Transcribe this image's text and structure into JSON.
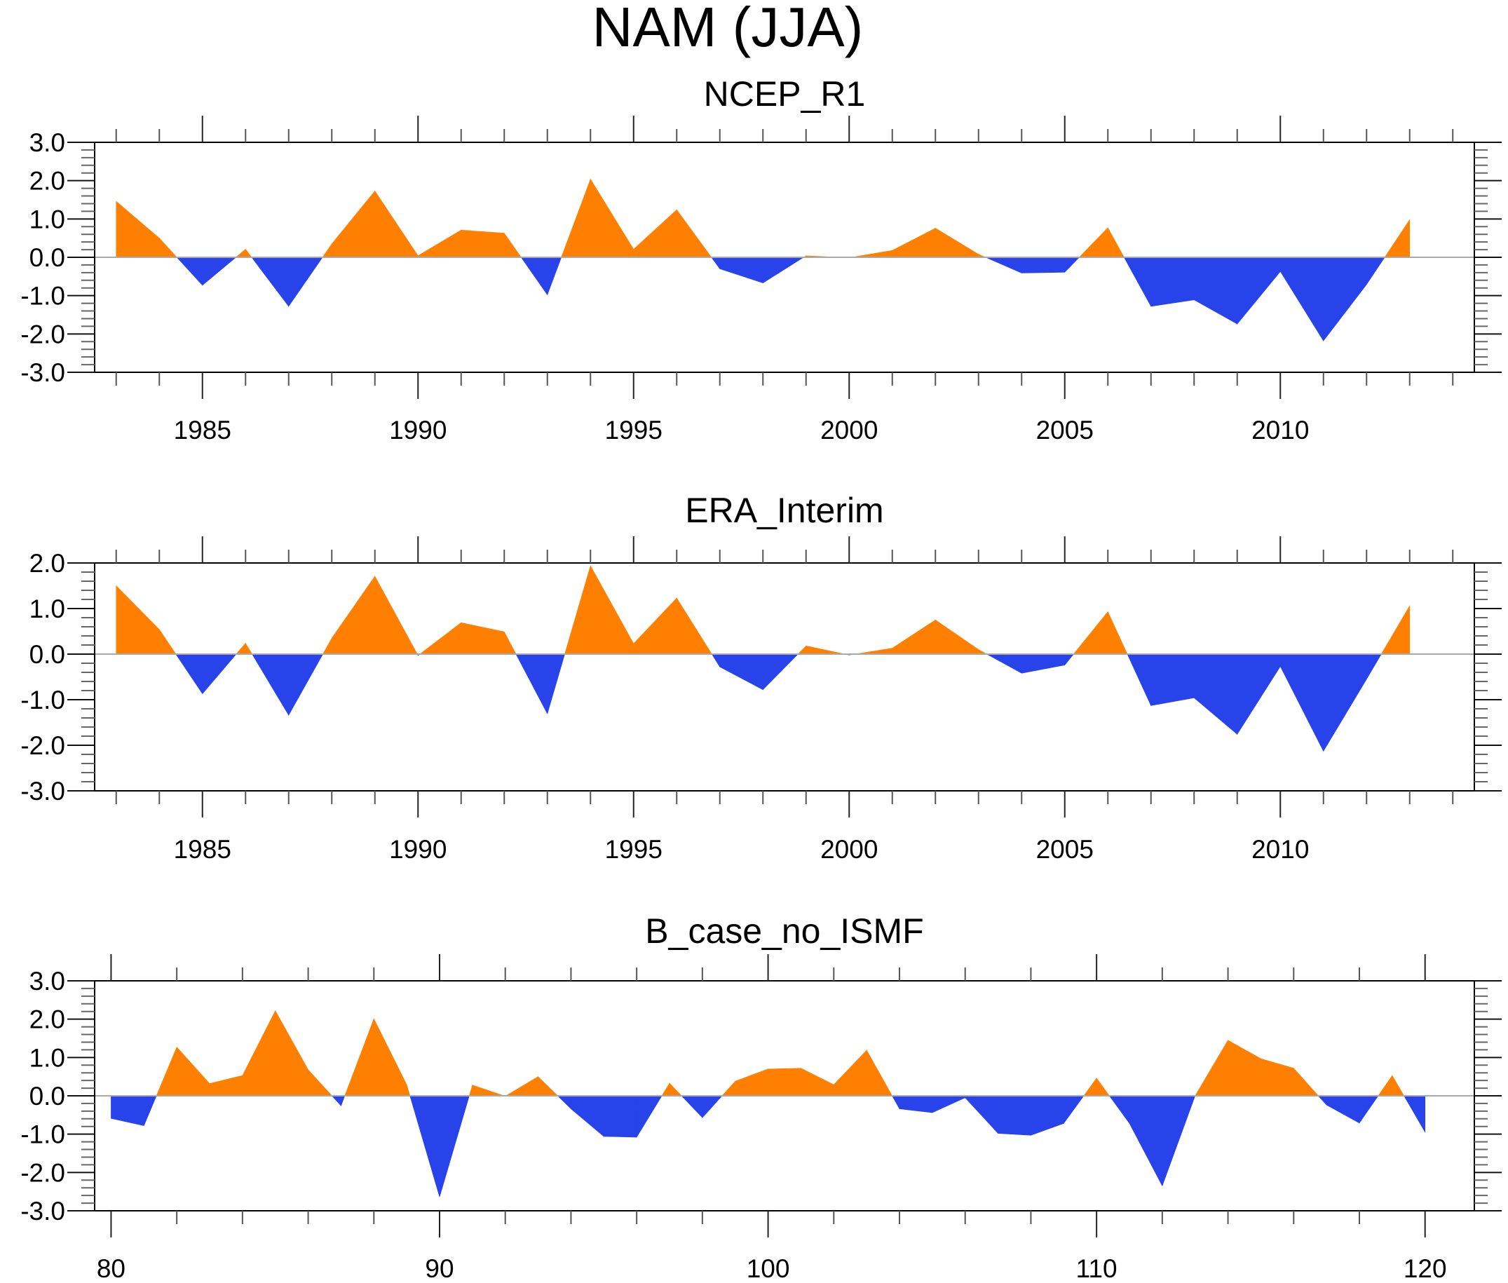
{
  "figure_title": "NAM (JJA)",
  "colors": {
    "positive": "#ff8000",
    "negative": "#2843ea",
    "zero_line": "#aaaaaa",
    "axes": "#000000"
  },
  "chart_data": [
    {
      "type": "area",
      "title": "NCEP_R1",
      "xlabel": "",
      "ylabel": "",
      "xlim": [
        1982.5,
        2014.5
      ],
      "ylim": [
        -3,
        3
      ],
      "x_major_ticks": [
        1985,
        1990,
        1995,
        2000,
        2005,
        2010
      ],
      "x_tick_labels": [
        "1985",
        "1990",
        "1995",
        "2000",
        "2005",
        "2010"
      ],
      "x_minor_step": 1,
      "y_major_ticks": [
        3,
        2,
        1,
        0,
        -1,
        -2,
        -3
      ],
      "y_tick_labels": [
        "3.0",
        "2.0",
        "1.0",
        "0.0",
        "-1.0",
        "-2.0",
        "-3.0"
      ],
      "y_minor_step": 0.2,
      "grid": false,
      "reference_line": 0,
      "x": [
        1983,
        1984,
        1985,
        1986,
        1987,
        1988,
        1989,
        1990,
        1991,
        1992,
        1993,
        1994,
        1995,
        1996,
        1997,
        1998,
        1999,
        2000,
        2001,
        2002,
        2003,
        2004,
        2005,
        2006,
        2007,
        2008,
        2009,
        2010,
        2011,
        2012,
        2013
      ],
      "values": [
        1.46,
        0.5,
        -0.73,
        0.21,
        -1.28,
        0.35,
        1.73,
        0.04,
        0.71,
        0.63,
        -0.98,
        2.04,
        0.21,
        1.24,
        -0.3,
        -0.67,
        0.04,
        -0.01,
        0.18,
        0.76,
        0.08,
        -0.41,
        -0.39,
        0.77,
        -1.28,
        -1.11,
        -1.74,
        -0.37,
        -2.18,
        -0.71,
        0.98
      ]
    },
    {
      "type": "area",
      "title": "ERA_Interim",
      "xlabel": "",
      "ylabel": "",
      "xlim": [
        1982.5,
        2014.5
      ],
      "ylim": [
        -3,
        2
      ],
      "x_major_ticks": [
        1985,
        1990,
        1995,
        2000,
        2005,
        2010
      ],
      "x_tick_labels": [
        "1985",
        "1990",
        "1995",
        "2000",
        "2005",
        "2010"
      ],
      "x_minor_step": 1,
      "y_major_ticks": [
        2,
        1,
        0,
        -1,
        -2,
        -3
      ],
      "y_tick_labels": [
        "2.0",
        "1.0",
        "0.0",
        "-1.0",
        "-2.0",
        "-3.0"
      ],
      "y_minor_step": 0.2,
      "grid": false,
      "reference_line": 0,
      "x": [
        1983,
        1984,
        1985,
        1986,
        1987,
        1988,
        1989,
        1990,
        1991,
        1992,
        1993,
        1994,
        1995,
        1996,
        1997,
        1998,
        1999,
        2000,
        2001,
        2002,
        2003,
        2004,
        2005,
        2006,
        2007,
        2008,
        2009,
        2010,
        2011,
        2012,
        2013
      ],
      "values": [
        1.5,
        0.54,
        -0.87,
        0.24,
        -1.34,
        0.35,
        1.71,
        -0.03,
        0.69,
        0.49,
        -1.31,
        1.94,
        0.23,
        1.23,
        -0.28,
        -0.78,
        0.18,
        -0.02,
        0.13,
        0.75,
        0.1,
        -0.42,
        -0.24,
        0.93,
        -1.13,
        -0.96,
        -1.76,
        -0.27,
        -2.13,
        -0.55,
        1.06
      ]
    },
    {
      "type": "area",
      "title": "B_case_no_ISMF",
      "xlabel": "",
      "ylabel": "",
      "xlim": [
        79.5,
        121.5
      ],
      "ylim": [
        -3,
        3
      ],
      "x_major_ticks": [
        80,
        90,
        100,
        110,
        120
      ],
      "x_tick_labels": [
        "80",
        "90",
        "100",
        "110",
        "120"
      ],
      "x_minor_step": 2,
      "y_major_ticks": [
        3,
        2,
        1,
        0,
        -1,
        -2,
        -3
      ],
      "y_tick_labels": [
        "3.0",
        "2.0",
        "1.0",
        "0.0",
        "-1.0",
        "-2.0",
        "-3.0"
      ],
      "y_minor_step": 0.2,
      "grid": false,
      "reference_line": 0,
      "x": [
        80,
        81,
        82,
        83,
        84,
        85,
        86,
        87,
        88,
        89,
        90,
        91,
        92,
        93,
        94,
        95,
        96,
        97,
        98,
        99,
        100,
        101,
        102,
        103,
        104,
        105,
        106,
        107,
        108,
        109,
        110,
        111,
        112,
        113,
        114,
        115,
        116,
        117,
        118,
        119,
        120
      ],
      "values": [
        -0.59,
        -0.78,
        1.27,
        0.32,
        0.53,
        2.22,
        0.68,
        -0.26,
        2.01,
        0.29,
        -2.64,
        0.28,
        -0.01,
        0.5,
        -0.34,
        -1.06,
        -1.08,
        0.33,
        -0.57,
        0.38,
        0.7,
        0.72,
        0.29,
        1.19,
        -0.34,
        -0.44,
        -0.05,
        -0.98,
        -1.03,
        -0.72,
        0.46,
        -0.72,
        -2.35,
        0.0,
        1.45,
        0.97,
        0.72,
        -0.24,
        -0.71,
        0.53,
        -0.95
      ]
    }
  ]
}
